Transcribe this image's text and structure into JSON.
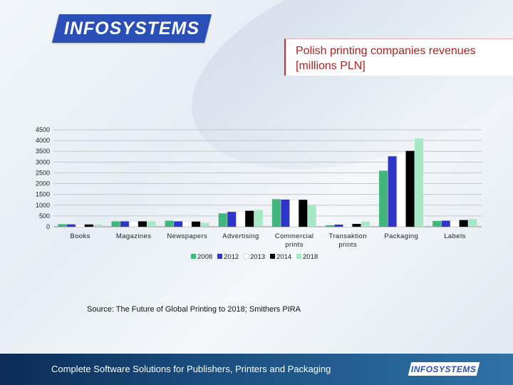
{
  "logo": {
    "text": "INFOSYSTEMS"
  },
  "title": {
    "line1": "Polish printing companies revenues",
    "line2": "[millions PLN]"
  },
  "source": "Source: The Future of Global Printing to 2018; Smithers PIRA",
  "footer": {
    "text": "Complete Software Solutions for Publishers, Printers and Packaging",
    "logo_text": "INFOSYSTEMS"
  },
  "chart_data": {
    "type": "bar",
    "categories": [
      "Books",
      "Magazines",
      "Newspapers",
      "Advertising",
      "Commercial prints",
      "Transaktion prints",
      "Packaging",
      "Labels"
    ],
    "series": [
      {
        "name": "2008",
        "color": "#40b67a",
        "values": [
          120,
          250,
          280,
          620,
          1280,
          70,
          2600,
          270
        ]
      },
      {
        "name": "2012",
        "color": "#2e35c8",
        "values": [
          110,
          250,
          250,
          690,
          1260,
          100,
          3270,
          280
        ]
      },
      {
        "name": "2013",
        "color": "#ffffff",
        "values": [
          105,
          250,
          240,
          710,
          1250,
          110,
          3400,
          290
        ]
      },
      {
        "name": "2014",
        "color": "#000000",
        "values": [
          105,
          250,
          240,
          740,
          1250,
          130,
          3520,
          310
        ]
      },
      {
        "name": "2018",
        "color": "#a6e8c6",
        "values": [
          100,
          250,
          180,
          780,
          1020,
          240,
          4100,
          360
        ]
      }
    ],
    "yticks": [
      0,
      500,
      1000,
      1500,
      2000,
      2500,
      3000,
      3500,
      4000,
      4500
    ],
    "ylim": [
      0,
      4500
    ],
    "grid": true,
    "legend_position": "bottom"
  }
}
